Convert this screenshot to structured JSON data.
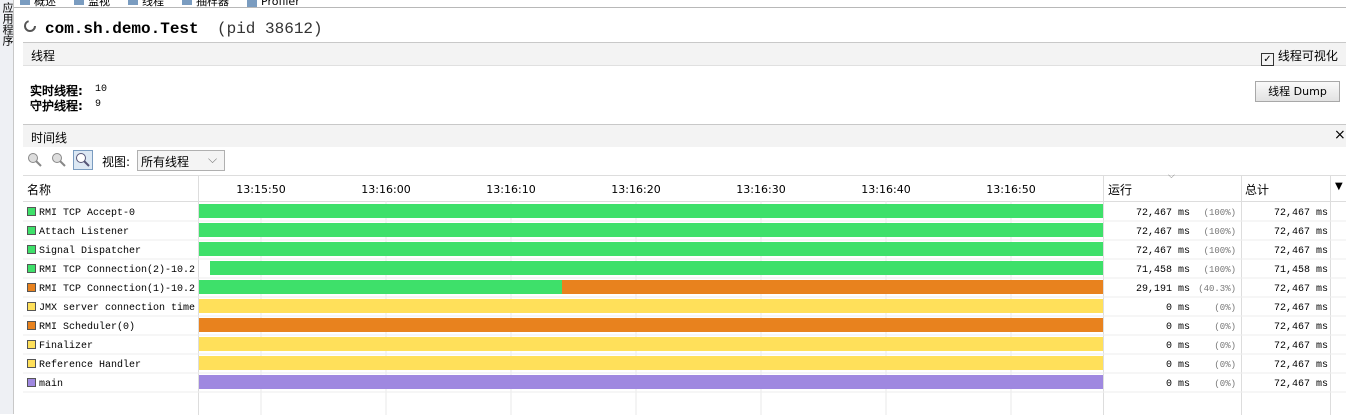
{
  "sidebar": {
    "label": "应用程序"
  },
  "tabs": [
    "概述",
    "监视",
    "线程",
    "抽样器",
    "Profiler"
  ],
  "header": {
    "title": "com.sh.demo.Test",
    "pid": "(pid 38612)"
  },
  "threads_panel": {
    "title": "线程",
    "checkbox": "线程可视化",
    "live_label": "实时线程:",
    "live_value": "10",
    "daemon_label": "守护线程:",
    "daemon_value": "9",
    "dump_button": "线程 Dump"
  },
  "timeline_panel": {
    "title": "时间线",
    "close": "×",
    "view_label": "视图:",
    "view_select": "所有线程",
    "columns": {
      "name": "名称",
      "running": "运行",
      "total": "总计"
    },
    "xlim": [
      45.04,
      117.36
    ],
    "xticks": [
      {
        "value": 50,
        "label": "13:15:50"
      },
      {
        "value": 60,
        "label": "13:16:00"
      },
      {
        "value": 70,
        "label": "13:16:10"
      },
      {
        "value": 80,
        "label": "13:16:20"
      },
      {
        "value": 90,
        "label": "13:16:30"
      },
      {
        "value": 100,
        "label": "13:16:40"
      },
      {
        "value": 110,
        "label": "13:16:50"
      }
    ],
    "rows": [
      {
        "name": "RMI TCP Accept-0",
        "color": "#3ee06a",
        "segments": [
          {
            "color": "#3ee06a",
            "from": 45.04,
            "to": 117.36
          }
        ],
        "running": "72,467 ms",
        "percent": "(100%)",
        "total": "72,467 ms"
      },
      {
        "name": "Attach Listener",
        "color": "#3ee06a",
        "segments": [
          {
            "color": "#3ee06a",
            "from": 45.04,
            "to": 117.36
          }
        ],
        "running": "72,467 ms",
        "percent": "(100%)",
        "total": "72,467 ms"
      },
      {
        "name": "Signal Dispatcher",
        "color": "#3ee06a",
        "segments": [
          {
            "color": "#3ee06a",
            "from": 45.04,
            "to": 117.36
          }
        ],
        "running": "72,467 ms",
        "percent": "(100%)",
        "total": "72,467 ms"
      },
      {
        "name": "RMI TCP Connection(2)-10.2",
        "color": "#3ee06a",
        "segments": [
          {
            "color": "#3ee06a",
            "from": 45.92,
            "to": 117.36
          }
        ],
        "running": "71,458 ms",
        "percent": "(100%)",
        "total": "71,458 ms"
      },
      {
        "name": "RMI TCP Connection(1)-10.2",
        "color": "#e8821e",
        "segments": [
          {
            "color": "#3ee06a",
            "from": 45.04,
            "to": 74.08
          },
          {
            "color": "#e8821e",
            "from": 74.08,
            "to": 117.36
          }
        ],
        "running": "29,191 ms",
        "percent": "(40.3%)",
        "total": "72,467 ms"
      },
      {
        "name": "JMX server connection time",
        "color": "#ffe05a",
        "segments": [
          {
            "color": "#ffe05a",
            "from": 45.04,
            "to": 117.36
          }
        ],
        "running": "0 ms",
        "percent": "(0%)",
        "total": "72,467 ms"
      },
      {
        "name": "RMI Scheduler(0)",
        "color": "#e8821e",
        "segments": [
          {
            "color": "#e8821e",
            "from": 45.04,
            "to": 117.36
          }
        ],
        "running": "0 ms",
        "percent": "(0%)",
        "total": "72,467 ms"
      },
      {
        "name": "Finalizer",
        "color": "#ffe05a",
        "segments": [
          {
            "color": "#ffe05a",
            "from": 45.04,
            "to": 117.36
          }
        ],
        "running": "0 ms",
        "percent": "(0%)",
        "total": "72,467 ms"
      },
      {
        "name": "Reference Handler",
        "color": "#ffe05a",
        "segments": [
          {
            "color": "#ffe05a",
            "from": 45.04,
            "to": 117.36
          }
        ],
        "running": "0 ms",
        "percent": "(0%)",
        "total": "72,467 ms"
      },
      {
        "name": "main",
        "color": "#9f88e0",
        "segments": [
          {
            "color": "#9f88e0",
            "from": 45.04,
            "to": 117.36
          }
        ],
        "running": "0 ms",
        "percent": "(0%)",
        "total": "72,467 ms"
      }
    ]
  }
}
